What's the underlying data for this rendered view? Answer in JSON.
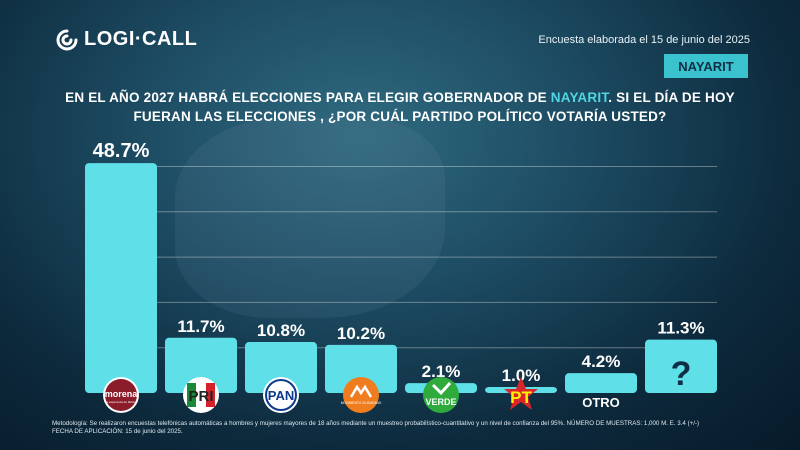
{
  "header": {
    "logo_text": "LOGI·CALL",
    "date_text": "Encuesta elaborada el 15 de junio del 2025",
    "state_badge": "NAYARIT"
  },
  "question": {
    "line1_before": "EN EL AÑO 2027 HABRÁ ELECCIONES PARA ELEGIR GOBERNADOR DE ",
    "line1_highlight": "NAYARIT",
    "line1_after": ".  SI EL DÍA DE HOY",
    "line2": "FUERAN LAS ELECCIONES , ¿POR CUÁL PARTIDO POLÍTICO VOTARÍA USTED?"
  },
  "footer": {
    "line1": "Metodología: Se realizaron encuestas telefónicas automáticas a hombres y mujeres mayores de 18 años mediante un muestreo probabilístico-cuantitativo y un nivel de confianza del 95%. NÚMERO DE MUESTRAS: 1,000 M. E. 3.4 (+/-)",
    "line2": "FECHA DE APLICACIÓN: 15 de junio del 2025."
  },
  "colors": {
    "bar": "#5fe0e8",
    "highlight": "#4fd6e2",
    "badge": "#3bc2cf"
  },
  "chart_data": {
    "type": "bar",
    "categories": [
      "MORENA",
      "PRI",
      "PAN",
      "MC",
      "VERDE",
      "PT",
      "OTRO",
      "?"
    ],
    "values": [
      48.7,
      11.7,
      10.8,
      10.2,
      2.1,
      1.0,
      4.2,
      11.3
    ],
    "value_labels": [
      "48.7%",
      "11.7%",
      "10.8%",
      "10.2%",
      "2.1%",
      "1.0%",
      "4.2%",
      "11.3%"
    ],
    "ylim": [
      0,
      50
    ],
    "grid": true,
    "logos": [
      {
        "name": "morena-logo",
        "text": "morena",
        "subtext": "La esperanza de México"
      },
      {
        "name": "pri-logo",
        "text": "PRI"
      },
      {
        "name": "pan-logo",
        "text": "PAN"
      },
      {
        "name": "mc-logo",
        "text": "MOVIMIENTO CIUDADANO"
      },
      {
        "name": "verde-logo",
        "text": "VERDE"
      },
      {
        "name": "pt-logo",
        "text": "PT"
      },
      {
        "name": "otro-label",
        "text": "OTRO"
      },
      {
        "name": "question-mark",
        "text": "?"
      }
    ]
  }
}
